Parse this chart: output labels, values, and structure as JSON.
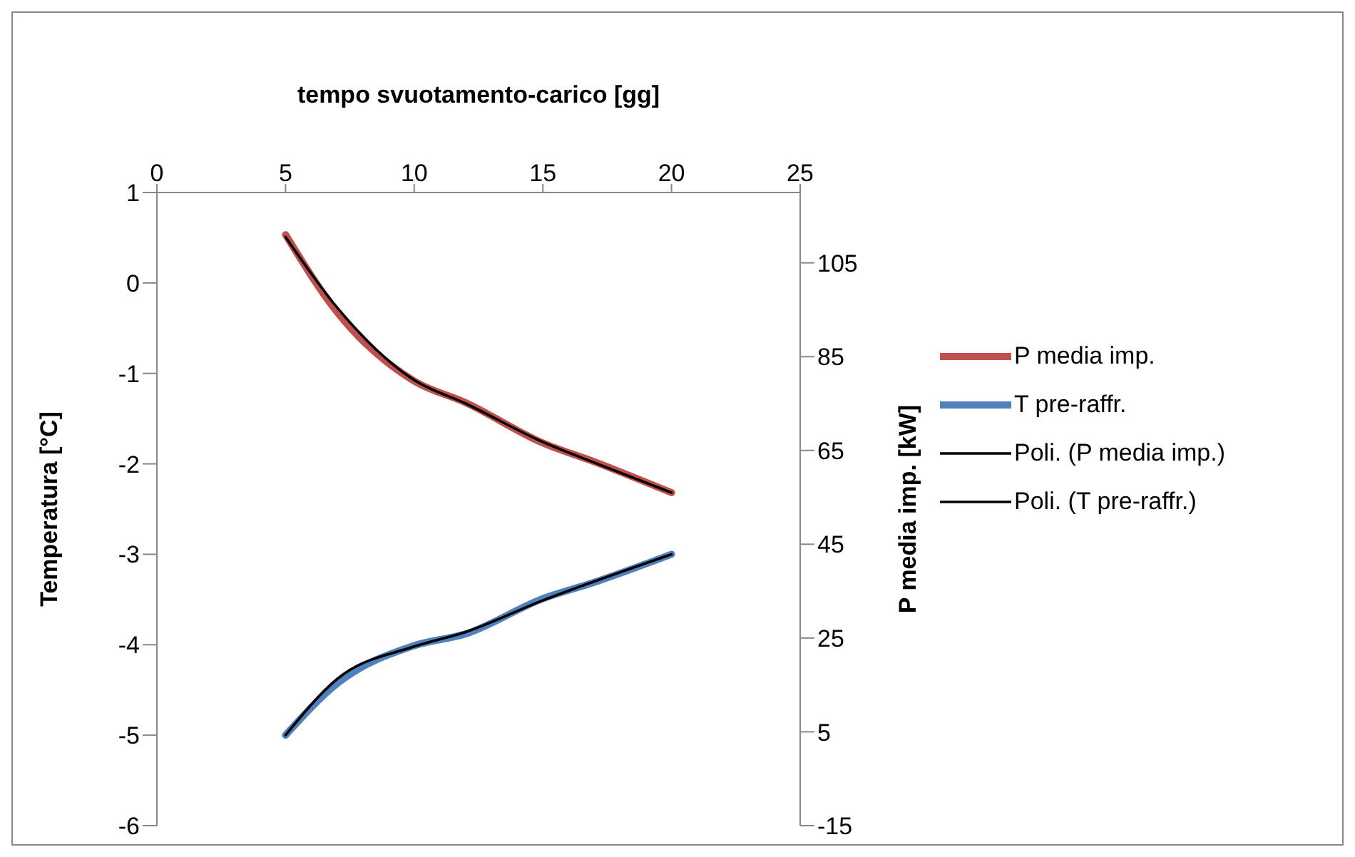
{
  "chart_data": {
    "type": "line",
    "xlabel": "tempo svuotamento-carico [gg]",
    "ylabel": "Temperatura [°C]",
    "y2label": "P media imp. [kW]",
    "xlim": [
      0,
      25
    ],
    "xticks": [
      0,
      5,
      10,
      15,
      20,
      25
    ],
    "ylim": [
      -6,
      1
    ],
    "yticks": [
      -6,
      -5,
      -4,
      -3,
      -2,
      -1,
      0,
      1
    ],
    "y2lim": [
      -15,
      120
    ],
    "y2ticks": [
      -15,
      5,
      25,
      45,
      65,
      85,
      105
    ],
    "legend": "right",
    "marker": "none",
    "line_style": "solid",
    "series": [
      {
        "name": "P media imp.",
        "color": "#c0504d",
        "axis": "y2",
        "x": [
          5,
          7,
          10,
          12,
          15,
          17,
          20
        ],
        "values": [
          111,
          94.5,
          79.8,
          75.2,
          66.6,
          62.6,
          56
        ]
      },
      {
        "name": "T pre-raffr.",
        "color": "#4f81bd",
        "axis": "y",
        "x": [
          5,
          7,
          10,
          12,
          15,
          17,
          20
        ],
        "values": [
          -5,
          -4.43,
          -4.01,
          -3.88,
          -3.49,
          -3.31,
          -3
        ]
      },
      {
        "name": "Poli. (P media imp.)",
        "type": "line",
        "color": "#000000",
        "axis": "y2",
        "x": [
          5,
          7,
          10,
          12,
          15,
          17,
          20
        ],
        "values": [
          110.5,
          95.5,
          80,
          75,
          66.8,
          62.4,
          56
        ]
      },
      {
        "name": "Poli. (T pre-raffr.)",
        "type": "line",
        "color": "#000000",
        "axis": "y",
        "x": [
          5,
          7,
          10,
          12,
          15,
          17,
          20
        ],
        "values": [
          -5,
          -4.38,
          -4.02,
          -3.86,
          -3.51,
          -3.3,
          -3
        ]
      }
    ]
  }
}
